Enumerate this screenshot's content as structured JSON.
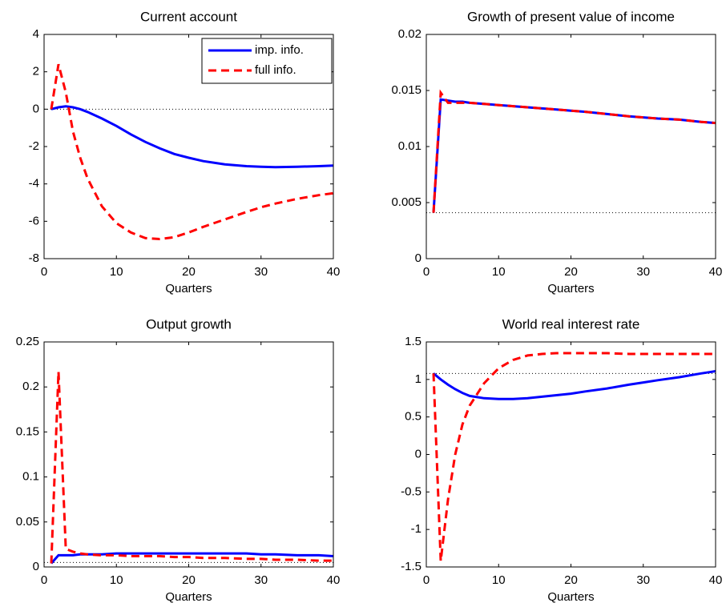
{
  "chart_data": [
    {
      "type": "line",
      "title": "Current account",
      "xlabel": "Quarters",
      "x": [
        1,
        2,
        3,
        4,
        5,
        6,
        8,
        10,
        12,
        14,
        16,
        18,
        20,
        22,
        25,
        28,
        30,
        32,
        35,
        38,
        40
      ],
      "series": [
        {
          "name": "imp. info.",
          "color": "#0000ff",
          "dashed": false,
          "values": [
            0,
            0.1,
            0.15,
            0.1,
            0,
            -0.15,
            -0.5,
            -0.9,
            -1.35,
            -1.75,
            -2.1,
            -2.4,
            -2.6,
            -2.78,
            -2.95,
            -3.05,
            -3.08,
            -3.1,
            -3.08,
            -3.05,
            -3.02
          ]
        },
        {
          "name": "full info.",
          "color": "#ff0000",
          "dashed": true,
          "values": [
            0,
            2.4,
            0.9,
            -1.2,
            -2.6,
            -3.7,
            -5.2,
            -6.1,
            -6.6,
            -6.9,
            -6.95,
            -6.85,
            -6.6,
            -6.3,
            -5.9,
            -5.5,
            -5.25,
            -5.05,
            -4.8,
            -4.6,
            -4.5
          ]
        }
      ],
      "hline": 0,
      "xlim": [
        0,
        40
      ],
      "xticks": [
        0,
        10,
        20,
        30,
        40
      ],
      "ylim": [
        -8,
        4
      ],
      "yticks": [
        -8,
        -6,
        -4,
        -2,
        0,
        2,
        4
      ],
      "legend": "upper right"
    },
    {
      "type": "line",
      "title": "Growth of present value of income",
      "xlabel": "Quarters",
      "x": [
        1,
        2,
        3,
        4,
        5,
        6,
        8,
        10,
        12,
        14,
        16,
        18,
        20,
        22,
        25,
        28,
        30,
        32,
        35,
        38,
        40
      ],
      "series": [
        {
          "color": "#0000ff",
          "dashed": false,
          "values": [
            0.0041,
            0.0142,
            0.0141,
            0.014,
            0.014,
            0.0139,
            0.0138,
            0.0137,
            0.0136,
            0.0135,
            0.0134,
            0.0133,
            0.0132,
            0.0131,
            0.0129,
            0.0127,
            0.0126,
            0.0125,
            0.0124,
            0.0122,
            0.0121
          ]
        },
        {
          "color": "#ff0000",
          "dashed": true,
          "values": [
            0.0041,
            0.0148,
            0.0139,
            0.0139,
            0.0139,
            0.0139,
            0.0138,
            0.0137,
            0.0136,
            0.0135,
            0.0134,
            0.0133,
            0.0132,
            0.0131,
            0.0129,
            0.0127,
            0.0126,
            0.0125,
            0.0124,
            0.0122,
            0.0121
          ]
        }
      ],
      "hline": 0.0041,
      "xlim": [
        0,
        40
      ],
      "xticks": [
        0,
        10,
        20,
        30,
        40
      ],
      "ylim": [
        0,
        0.02
      ],
      "yticks": [
        0,
        0.005,
        0.01,
        0.015,
        0.02
      ]
    },
    {
      "type": "line",
      "title": "Output growth",
      "xlabel": "Quarters",
      "x": [
        1,
        2,
        3,
        4,
        5,
        6,
        8,
        10,
        12,
        14,
        16,
        18,
        20,
        22,
        25,
        28,
        30,
        32,
        35,
        38,
        40
      ],
      "series": [
        {
          "color": "#0000ff",
          "dashed": false,
          "values": [
            0.004,
            0.013,
            0.013,
            0.013,
            0.014,
            0.014,
            0.014,
            0.015,
            0.015,
            0.015,
            0.015,
            0.015,
            0.015,
            0.015,
            0.015,
            0.015,
            0.014,
            0.014,
            0.013,
            0.013,
            0.012
          ]
        },
        {
          "color": "#ff0000",
          "dashed": true,
          "values": [
            0.004,
            0.217,
            0.02,
            0.017,
            0.015,
            0.014,
            0.013,
            0.013,
            0.012,
            0.012,
            0.012,
            0.011,
            0.011,
            0.01,
            0.01,
            0.009,
            0.009,
            0.008,
            0.008,
            0.007,
            0.007
          ]
        }
      ],
      "hline": 0.005,
      "xlim": [
        0,
        40
      ],
      "xticks": [
        0,
        10,
        20,
        30,
        40
      ],
      "ylim": [
        0,
        0.25
      ],
      "yticks": [
        0,
        0.05,
        0.1,
        0.15,
        0.2,
        0.25
      ]
    },
    {
      "type": "line",
      "title": "World real interest rate",
      "xlabel": "Quarters",
      "x": [
        1,
        2,
        3,
        4,
        5,
        6,
        8,
        10,
        12,
        14,
        16,
        18,
        20,
        22,
        25,
        28,
        30,
        32,
        35,
        38,
        40
      ],
      "series": [
        {
          "color": "#0000ff",
          "dashed": false,
          "values": [
            1.08,
            1.0,
            0.93,
            0.87,
            0.82,
            0.78,
            0.75,
            0.74,
            0.74,
            0.75,
            0.77,
            0.79,
            0.81,
            0.84,
            0.88,
            0.93,
            0.96,
            0.99,
            1.03,
            1.08,
            1.11
          ]
        },
        {
          "color": "#ff0000",
          "dashed": true,
          "values": [
            1.08,
            -1.42,
            -0.6,
            0.0,
            0.4,
            0.65,
            0.95,
            1.15,
            1.26,
            1.32,
            1.34,
            1.35,
            1.35,
            1.35,
            1.35,
            1.34,
            1.34,
            1.34,
            1.34,
            1.34,
            1.34
          ]
        }
      ],
      "hline": 1.08,
      "xlim": [
        0,
        40
      ],
      "xticks": [
        0,
        10,
        20,
        30,
        40
      ],
      "ylim": [
        -1.5,
        1.5
      ],
      "yticks": [
        -1.5,
        -1,
        -0.5,
        0,
        0.5,
        1,
        1.5
      ]
    }
  ]
}
